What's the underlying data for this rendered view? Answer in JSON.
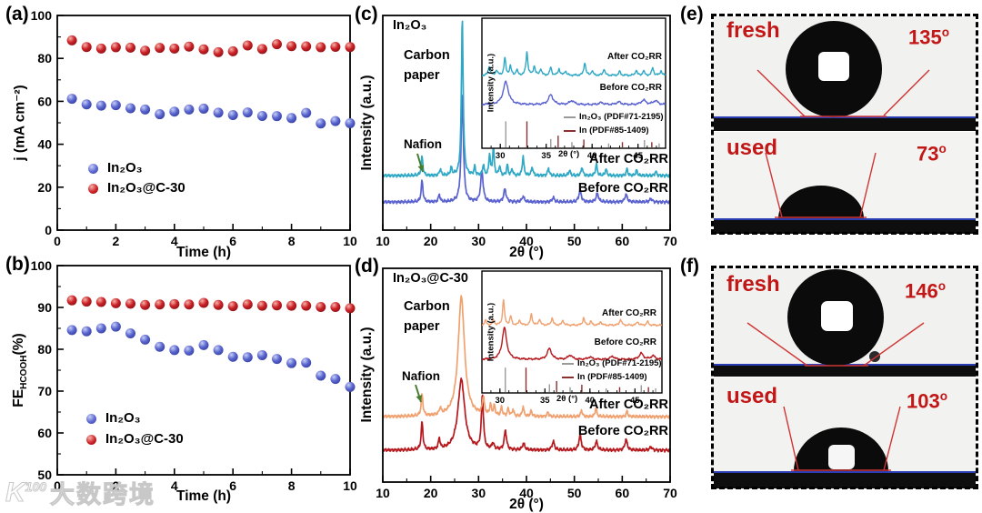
{
  "figure": {
    "panel_labels": {
      "a": "(a)",
      "b": "(b)",
      "c": "(c)",
      "d": "(d)",
      "e": "(e)",
      "f": "(f)"
    }
  },
  "watermark": {
    "logo": "K",
    "logo_sup": "100",
    "text": "大数跨境"
  },
  "panel_e": {
    "fresh_label": "fresh",
    "used_label": "used",
    "fresh_angle": "135",
    "used_angle": "73",
    "deg": "o"
  },
  "panel_f": {
    "fresh_label": "fresh",
    "used_label": "used",
    "fresh_angle": "146",
    "used_angle": "103",
    "deg": "o"
  },
  "chart_data": [
    {
      "id": "a",
      "type": "scatter",
      "xlabel": "Time (h)",
      "ylabel": "j (mA cm⁻²)",
      "xlim": [
        0,
        10
      ],
      "ylim": [
        0,
        100
      ],
      "xticks": [
        0,
        2,
        4,
        6,
        8,
        10
      ],
      "yticks": [
        0,
        20,
        40,
        60,
        80,
        100
      ],
      "xminor": [
        1,
        3,
        5,
        7,
        9
      ],
      "yminor": [
        10,
        30,
        50,
        70,
        90
      ],
      "x": [
        0.5,
        1,
        1.5,
        2,
        2.5,
        3,
        3.5,
        4,
        4.5,
        5,
        5.5,
        6,
        6.5,
        7,
        7.5,
        8,
        8.5,
        9,
        9.5,
        10
      ],
      "series": [
        {
          "name": "In₂O₃",
          "color": "#5b66cf",
          "highlight": "#c7cff6",
          "edge": "#3642a6",
          "values": [
            61.2,
            58.6,
            58.0,
            58.2,
            56.8,
            56.2,
            54.0,
            55.2,
            56.2,
            56.6,
            54.7,
            53.6,
            54.8,
            53.2,
            53.1,
            52.2,
            54.6,
            49.7,
            50.8,
            49.8
          ]
        },
        {
          "name": "In₂O₃@C-30",
          "color": "#cc2127",
          "highlight": "#f4b3ab",
          "edge": "#8e1216",
          "values": [
            88.4,
            85.3,
            84.6,
            85.2,
            85.0,
            83.6,
            84.9,
            84.6,
            85.5,
            84.2,
            82.9,
            83.3,
            86.0,
            84.4,
            86.6,
            85.7,
            85.6,
            85.2,
            85.4,
            85.3
          ]
        }
      ]
    },
    {
      "id": "b",
      "type": "scatter",
      "xlabel": "Time (h)",
      "ylabel": "FE_HCOOH(%)",
      "ylabel_parts": {
        "pre": "FE",
        "sub": "HCOOH",
        "post": "(%)"
      },
      "xlim": [
        0,
        10
      ],
      "ylim": [
        50,
        100
      ],
      "xticks": [
        0,
        2,
        4,
        6,
        8,
        10
      ],
      "yticks": [
        50,
        60,
        70,
        80,
        90,
        100
      ],
      "xminor": [
        1,
        3,
        5,
        7,
        9
      ],
      "yminor": [
        55,
        65,
        75,
        85,
        95
      ],
      "x": [
        0.5,
        1,
        1.5,
        2,
        2.5,
        3,
        3.5,
        4,
        4.5,
        5,
        5.5,
        6,
        6.5,
        7,
        7.5,
        8,
        8.5,
        9,
        9.5,
        10
      ],
      "series": [
        {
          "name": "In₂O₃",
          "color": "#5b66cf",
          "highlight": "#c7cff6",
          "edge": "#3642a6",
          "values": [
            84.6,
            84.3,
            85.0,
            85.4,
            83.8,
            82.3,
            80.6,
            79.8,
            79.7,
            81.0,
            79.8,
            78.2,
            78.1,
            78.6,
            77.7,
            76.7,
            76.8,
            73.7,
            72.9,
            71.0
          ]
        },
        {
          "name": "In₂O₃@C-30",
          "color": "#cc2127",
          "highlight": "#f4b3ab",
          "edge": "#8e1216",
          "values": [
            91.7,
            91.4,
            91.3,
            91.0,
            90.9,
            90.6,
            90.7,
            90.8,
            90.7,
            91.1,
            90.6,
            90.3,
            90.7,
            90.4,
            90.5,
            90.4,
            90.4,
            90.1,
            90.1,
            89.8
          ]
        }
      ]
    },
    {
      "id": "c",
      "type": "line",
      "sample": "In₂O₃",
      "xlabel": "2θ (°)",
      "ylabel": "Intensity (a.u.)",
      "xlim": [
        10,
        70
      ],
      "xticks": [
        10,
        20,
        30,
        40,
        50,
        60,
        70
      ],
      "xminor": [
        15,
        25,
        35,
        45,
        55,
        65
      ],
      "annotations": {
        "substrate": "Carbon paper",
        "binder": "Nafion"
      },
      "curves": [
        {
          "name": "Before CO₂RR",
          "color": "#5a62cf",
          "baseline": 0.131,
          "peaks": [
            [
              18.2,
              0.1,
              0.22
            ],
            [
              21.8,
              0.035,
              0.2
            ],
            [
              26.6,
              0.5,
              0.28
            ],
            [
              30.7,
              0.145,
              0.3
            ],
            [
              35.5,
              0.06,
              0.3
            ],
            [
              39.3,
              0.025,
              0.3
            ],
            [
              45.6,
              0.02,
              0.3
            ],
            [
              51.2,
              0.055,
              0.3
            ],
            [
              54.8,
              0.04,
              0.3
            ],
            [
              60.8,
              0.035,
              0.3
            ],
            [
              66.0,
              0.015,
              0.3
            ]
          ]
        },
        {
          "name": "After CO₂RR",
          "color": "#2fa8c5",
          "baseline": 0.254,
          "peaks": [
            [
              18.2,
              0.09,
              0.2
            ],
            [
              22.0,
              0.03,
              0.2
            ],
            [
              24.3,
              0.035,
              0.2
            ],
            [
              26.6,
              0.73,
              0.22
            ],
            [
              29.2,
              0.04,
              0.18
            ],
            [
              31.0,
              0.05,
              0.18
            ],
            [
              32.3,
              0.1,
              0.18
            ],
            [
              33.1,
              0.14,
              0.18
            ],
            [
              34.4,
              0.045,
              0.18
            ],
            [
              36.0,
              0.05,
              0.18
            ],
            [
              37.0,
              0.03,
              0.18
            ],
            [
              39.3,
              0.09,
              0.2
            ],
            [
              41.2,
              0.04,
              0.2
            ],
            [
              44.6,
              0.035,
              0.2
            ],
            [
              49.0,
              0.025,
              0.2
            ],
            [
              51.6,
              0.04,
              0.2
            ],
            [
              54.6,
              0.055,
              0.2
            ],
            [
              56.6,
              0.03,
              0.2
            ],
            [
              61.0,
              0.03,
              0.2
            ],
            [
              63.0,
              0.025,
              0.2
            ],
            [
              67.0,
              0.02,
              0.2
            ]
          ]
        }
      ],
      "inset": {
        "xlim": [
          28,
          48
        ],
        "xticks": [
          30,
          35,
          40,
          45
        ],
        "xlabel": "2θ (°)",
        "ylabel": "Intensity (a.u.)",
        "curves": [
          {
            "name": "Before CO₂RR",
            "color": "#5a62cf",
            "baseline": 0.335,
            "peaks": [
              [
                30.6,
                0.175,
                0.35
              ],
              [
                35.5,
                0.075,
                0.3
              ],
              [
                37.8,
                0.03,
                0.3
              ],
              [
                41.0,
                0.015,
                0.3
              ],
              [
                42.9,
                0.02,
                0.3
              ],
              [
                45.6,
                0.035,
                0.3
              ],
              [
                46.9,
                0.03,
                0.3
              ]
            ]
          },
          {
            "name": "After CO₂RR",
            "color": "#2fa8c5",
            "baseline": 0.56,
            "peaks": [
              [
                28.8,
                0.07,
                0.12
              ],
              [
                29.6,
                0.04,
                0.12
              ],
              [
                30.5,
                0.13,
                0.12
              ],
              [
                31.1,
                0.07,
                0.12
              ],
              [
                31.8,
                0.04,
                0.12
              ],
              [
                32.9,
                0.18,
                0.12
              ],
              [
                33.7,
                0.07,
                0.12
              ],
              [
                34.4,
                0.05,
                0.12
              ],
              [
                35.5,
                0.06,
                0.12
              ],
              [
                36.4,
                0.05,
                0.12
              ],
              [
                37.1,
                0.035,
                0.12
              ],
              [
                39.2,
                0.1,
                0.12
              ],
              [
                40.0,
                0.035,
                0.12
              ],
              [
                41.3,
                0.05,
                0.12
              ],
              [
                43.0,
                0.03,
                0.12
              ],
              [
                44.8,
                0.04,
                0.12
              ],
              [
                45.6,
                0.035,
                0.12
              ],
              [
                46.6,
                0.06,
                0.12
              ],
              [
                47.5,
                0.035,
                0.12
              ]
            ]
          }
        ],
        "ref_sticks": [
          {
            "name": "In₂O₃ (PDF#71-2195)",
            "color": "#9a9a9a",
            "sticks": [
              [
                30.6,
                1.0
              ],
              [
                35.5,
                0.32
              ],
              [
                37.8,
                0.2
              ],
              [
                41.8,
                0.15
              ],
              [
                45.7,
                0.28
              ],
              [
                47.3,
                0.15
              ]
            ]
          },
          {
            "name": "In (PDF#85-1409)",
            "color": "#8b3030",
            "sticks": [
              [
                32.9,
                1.0
              ],
              [
                36.3,
                0.45
              ],
              [
                39.1,
                0.3
              ],
              [
                43.3,
                0.2
              ],
              [
                46.5,
                0.2
              ]
            ]
          }
        ]
      }
    },
    {
      "id": "d",
      "type": "line",
      "sample": "In₂O₃@C-30",
      "xlabel": "2θ (°)",
      "ylabel": "Intensity (a.u.)",
      "xlim": [
        10,
        70
      ],
      "xticks": [
        10,
        20,
        30,
        40,
        50,
        60,
        70
      ],
      "xminor": [
        15,
        25,
        35,
        45,
        55,
        65
      ],
      "annotations": {
        "substrate": "Carbon paper",
        "binder": "Nafion"
      },
      "curves": [
        {
          "name": "Before CO₂RR",
          "color": "#b5181d",
          "baseline": 0.149,
          "peaks": [
            [
              18.2,
              0.13,
              0.22
            ],
            [
              21.8,
              0.05,
              0.2
            ],
            [
              26.4,
              0.33,
              0.85
            ],
            [
              30.8,
              0.25,
              0.25
            ],
            [
              33.0,
              0.03,
              0.25
            ],
            [
              35.6,
              0.09,
              0.28
            ],
            [
              39.4,
              0.03,
              0.3
            ],
            [
              45.6,
              0.04,
              0.3
            ],
            [
              51.2,
              0.07,
              0.3
            ],
            [
              54.6,
              0.04,
              0.3
            ],
            [
              60.8,
              0.05,
              0.3
            ],
            [
              66.0,
              0.015,
              0.3
            ]
          ]
        },
        {
          "name": "After CO₂RR",
          "color": "#f0a170",
          "baseline": 0.306,
          "peaks": [
            [
              18.2,
              0.1,
              0.22
            ],
            [
              22.0,
              0.03,
              0.2
            ],
            [
              26.4,
              0.56,
              0.8
            ],
            [
              31.0,
              0.08,
              0.25
            ],
            [
              32.5,
              0.05,
              0.2
            ],
            [
              33.3,
              0.045,
              0.2
            ],
            [
              34.8,
              0.04,
              0.2
            ],
            [
              36.2,
              0.035,
              0.2
            ],
            [
              37.2,
              0.03,
              0.2
            ],
            [
              39.3,
              0.045,
              0.2
            ],
            [
              41.0,
              0.025,
              0.2
            ],
            [
              44.5,
              0.02,
              0.2
            ],
            [
              51.5,
              0.03,
              0.2
            ],
            [
              54.5,
              0.04,
              0.2
            ],
            [
              61.0,
              0.025,
              0.2
            ]
          ]
        }
      ],
      "inset": {
        "xlim": [
          28,
          48
        ],
        "xticks": [
          30,
          35,
          40,
          45
        ],
        "xlabel": "2θ (°)",
        "ylabel": "Intensity (a.u.)",
        "curves": [
          {
            "name": "Before CO₂RR",
            "color": "#b5181d",
            "baseline": 0.274,
            "peaks": [
              [
                30.5,
                0.26,
                0.3
              ],
              [
                35.5,
                0.09,
                0.28
              ],
              [
                37.8,
                0.035,
                0.28
              ],
              [
                40.0,
                0.02,
                0.28
              ],
              [
                42.5,
                0.025,
                0.28
              ],
              [
                45.7,
                0.05,
                0.28
              ],
              [
                47.0,
                0.03,
                0.28
              ]
            ]
          },
          {
            "name": "After CO₂RR",
            "color": "#f0a170",
            "baseline": 0.556,
            "peaks": [
              [
                28.4,
                0.04,
                0.12
              ],
              [
                29.3,
                0.04,
                0.12
              ],
              [
                30.4,
                0.21,
                0.12
              ],
              [
                31.2,
                0.07,
                0.12
              ],
              [
                32.2,
                0.04,
                0.12
              ],
              [
                33.5,
                0.09,
                0.12
              ],
              [
                34.4,
                0.05,
                0.12
              ],
              [
                35.8,
                0.06,
                0.12
              ],
              [
                37.0,
                0.04,
                0.12
              ],
              [
                39.3,
                0.06,
                0.12
              ],
              [
                40.1,
                0.03,
                0.12
              ],
              [
                41.2,
                0.03,
                0.12
              ],
              [
                43.4,
                0.05,
                0.12
              ],
              [
                45.3,
                0.03,
                0.12
              ],
              [
                46.4,
                0.03,
                0.12
              ]
            ]
          }
        ],
        "ref_sticks": [
          {
            "name": "In₂O₃ (PDF#71-2195)",
            "color": "#9a9a9a",
            "sticks": [
              [
                30.6,
                1.0
              ],
              [
                35.5,
                0.32
              ],
              [
                37.8,
                0.2
              ],
              [
                41.8,
                0.15
              ],
              [
                45.7,
                0.28
              ],
              [
                47.3,
                0.15
              ]
            ]
          },
          {
            "name": "In (PDF#85-1409)",
            "color": "#8b3030",
            "sticks": [
              [
                32.9,
                1.0
              ],
              [
                36.3,
                0.45
              ],
              [
                39.1,
                0.3
              ],
              [
                43.3,
                0.2
              ],
              [
                46.5,
                0.2
              ]
            ]
          }
        ]
      }
    }
  ]
}
